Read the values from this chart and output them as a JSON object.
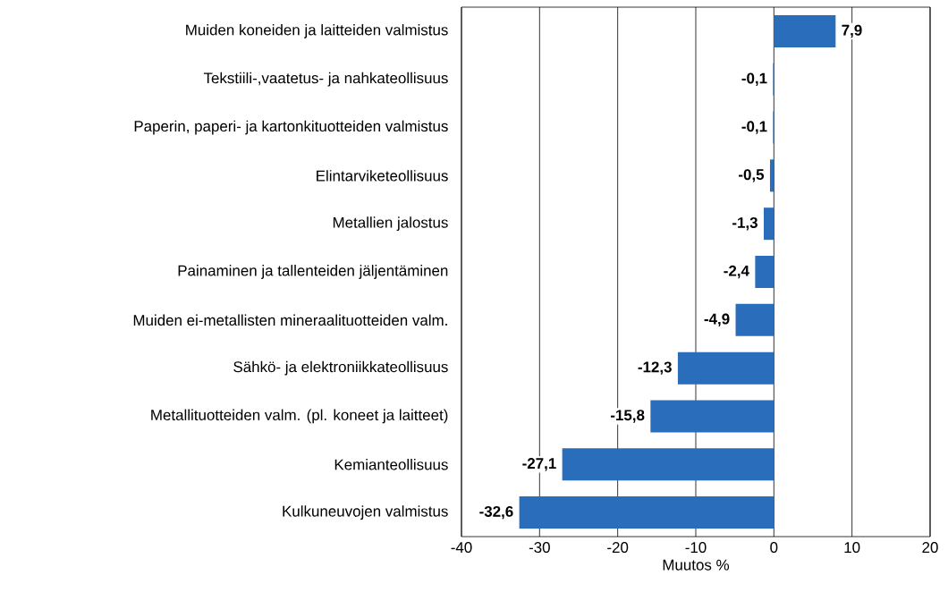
{
  "chart_data": {
    "type": "bar",
    "orientation": "horizontal",
    "xlabel": "Muutos %",
    "categories": [
      "Muiden koneiden ja laitteiden valmistus",
      "Tekstiili-,vaatetus- ja nahkateollisuus",
      "Paperin, paperi- ja kartonkituotteiden valmistus",
      "Elintarviketeollisuus",
      "Metallien jalostus",
      "Painaminen ja tallenteiden jäljentäminen",
      "Muiden ei-metallisten mineraalituotteiden valm.",
      "Sähkö- ja elektroniikkateollisuus",
      "Metallituotteiden valm. (pl. koneet ja laitteet)",
      "Kemianteollisuus",
      "Kulkuneuvojen valmistus"
    ],
    "values": [
      7.9,
      -0.1,
      -0.1,
      -0.5,
      -1.3,
      -2.4,
      -4.9,
      -12.3,
      -15.8,
      -27.1,
      -32.6
    ],
    "value_labels": [
      "7,9",
      "-0,1",
      "-0,1",
      "-0,5",
      "-1,3",
      "-2,4",
      "-4,9",
      "-12,3",
      "-15,8",
      "-27,1",
      "-32,6"
    ],
    "color": "#2a6ebb",
    "xlim": [
      -40,
      20
    ],
    "xticks": [
      -40,
      -30,
      -20,
      -10,
      0,
      10,
      20
    ],
    "grid": "x"
  }
}
